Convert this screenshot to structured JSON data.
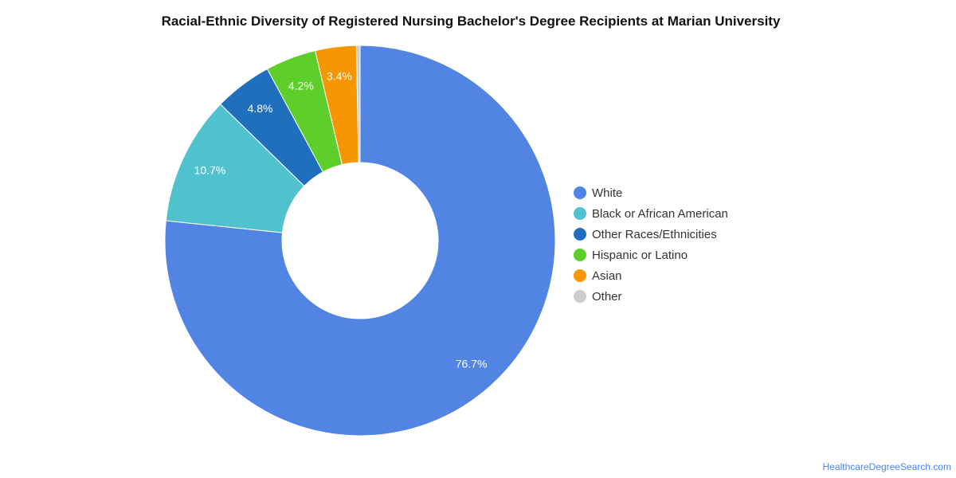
{
  "chart_data": {
    "type": "pie",
    "title": "Racial-Ethnic Diversity of Registered Nursing Bachelor's Degree Recipients at Marian University",
    "donut": true,
    "legend_position": "right",
    "slices": [
      {
        "label": "White",
        "value": 76.7,
        "value_label": "76.7%",
        "color": "#5284e3"
      },
      {
        "label": "Black or African American",
        "value": 10.7,
        "value_label": "10.7%",
        "color": "#50c2cd"
      },
      {
        "label": "Other Races/Ethnicities",
        "value": 4.8,
        "value_label": "4.8%",
        "color": "#1f6fbd"
      },
      {
        "label": "Hispanic or Latino",
        "value": 4.2,
        "value_label": "4.2%",
        "color": "#5ece2a"
      },
      {
        "label": "Asian",
        "value": 3.4,
        "value_label": "3.4%",
        "color": "#f79603"
      },
      {
        "label": "Other",
        "value": 0.3,
        "value_label": "",
        "color": "#cccccc"
      }
    ]
  },
  "footer": {
    "source": "HealthcareDegreeSearch.com"
  }
}
